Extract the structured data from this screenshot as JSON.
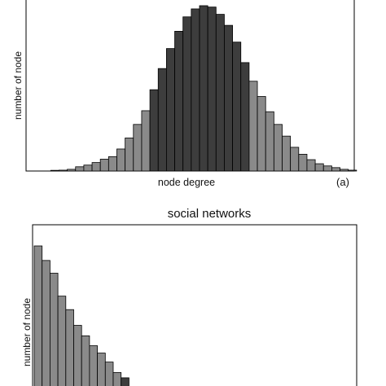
{
  "chart_data": [
    {
      "type": "bar",
      "panel_label": "(a)",
      "title": "",
      "xlabel": "node degree",
      "ylabel": "number of node",
      "ylim": [
        0,
        100
      ],
      "x": [
        1,
        2,
        3,
        4,
        5,
        6,
        7,
        8,
        9,
        10,
        11,
        12,
        13,
        14,
        15,
        16,
        17,
        18,
        19,
        20,
        21,
        22,
        23,
        24,
        25,
        26,
        27,
        28,
        29,
        30,
        31,
        32,
        33,
        34,
        35,
        36,
        37,
        38,
        39,
        40
      ],
      "values": [
        0,
        0,
        0.4,
        0.5,
        1,
        2.5,
        3.5,
        5,
        7,
        8.5,
        13,
        19.5,
        27.5,
        35.6,
        48,
        60.5,
        72.3,
        82.5,
        91,
        95.7,
        97.6,
        96.8,
        92.5,
        86,
        76.1,
        64,
        53,
        44,
        35,
        27.5,
        20.6,
        14,
        9.9,
        6.7,
        4.3,
        3,
        2,
        1,
        0.5,
        0
      ],
      "bar_shades": [
        "light",
        "light",
        "light",
        "light",
        "light",
        "light",
        "light",
        "light",
        "light",
        "light",
        "light",
        "light",
        "light",
        "light",
        "dark",
        "dark",
        "dark",
        "dark",
        "dark",
        "dark",
        "dark",
        "dark",
        "dark",
        "dark",
        "dark",
        "dark",
        "light",
        "light",
        "light",
        "light",
        "light",
        "light",
        "light",
        "light",
        "light",
        "light",
        "light",
        "light",
        "light",
        "light"
      ],
      "colors": {
        "dark": "#3d3d3d",
        "light": "#8a8a8a",
        "stroke": "#000000"
      }
    },
    {
      "type": "bar",
      "title": "social networks",
      "xlabel": "",
      "ylabel": "number of node",
      "ylim": [
        0,
        100
      ],
      "x": [
        1,
        2,
        3,
        4,
        5,
        6,
        7,
        8,
        9,
        10,
        11,
        12
      ],
      "values": [
        100,
        90.3,
        81.8,
        66.5,
        57.5,
        47,
        40,
        33.4,
        28.5,
        22.5,
        15.5,
        12
      ],
      "bar_shades": [
        "light",
        "light",
        "light",
        "light",
        "light",
        "light",
        "light",
        "light",
        "light",
        "light",
        "light",
        "dark"
      ],
      "colors": {
        "dark": "#3d3d3d",
        "light": "#8a8a8a",
        "stroke": "#000000"
      }
    }
  ]
}
